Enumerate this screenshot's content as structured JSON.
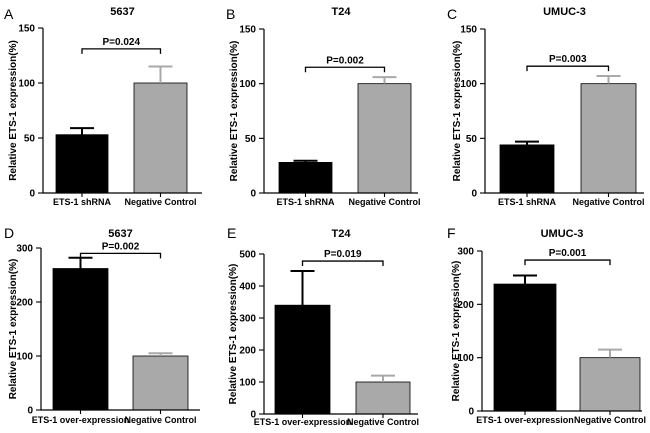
{
  "figure": {
    "label": "Relative ETS-1 expression bar charts (six panels)"
  },
  "colors": {
    "bar_dark": "#000000",
    "bar_light": "#a9a9a9",
    "axis": "#000000"
  },
  "chart_data": [
    {
      "panel": "A",
      "type": "bar",
      "title": "5637",
      "ylabel": "Relative ETS-1 expression(%)",
      "xlabel": "",
      "categories": [
        "ETS-1 shRNA",
        "Negative Control"
      ],
      "values": [
        53,
        100
      ],
      "errors": [
        6,
        15
      ],
      "ylim": [
        0,
        150
      ],
      "yticks": [
        0,
        50,
        100,
        150
      ],
      "significance": "P=0.024",
      "bracket_y": 131
    },
    {
      "panel": "B",
      "type": "bar",
      "title": "T24",
      "ylabel": "Relative ETS-1 expression(%)",
      "xlabel": "",
      "categories": [
        "ETS-1 shRNA",
        "Negative Control"
      ],
      "values": [
        28,
        100
      ],
      "errors": [
        1.5,
        6
      ],
      "ylim": [
        0,
        150
      ],
      "yticks": [
        0,
        50,
        100,
        150
      ],
      "significance": "P=0.002",
      "bracket_y": 115
    },
    {
      "panel": "C",
      "type": "bar",
      "title": "UMUC-3",
      "ylabel": "Relative ETS-1 expression(%)",
      "xlabel": "",
      "categories": [
        "ETS-1 shRNA",
        "Negative Control"
      ],
      "values": [
        44,
        100
      ],
      "errors": [
        3,
        7
      ],
      "ylim": [
        0,
        150
      ],
      "yticks": [
        0,
        50,
        100,
        150
      ],
      "significance": "P=0.003",
      "bracket_y": 116
    },
    {
      "panel": "D",
      "type": "bar",
      "title": "5637",
      "ylabel": "Relative ETS-1 expression(%)",
      "xlabel": "",
      "categories": [
        "ETS-1 over-expression",
        "Negative Control"
      ],
      "values": [
        262,
        100
      ],
      "errors": [
        20,
        5
      ],
      "ylim": [
        0,
        300
      ],
      "yticks": [
        0,
        100,
        200,
        300
      ],
      "significance": "P=0.002",
      "bracket_y": 290
    },
    {
      "panel": "E",
      "type": "bar",
      "title": "T24",
      "ylabel": "Relative ETS-1 expression(%)",
      "xlabel": "",
      "categories": [
        "ETS-1 over-expression",
        "Negative Control"
      ],
      "values": [
        340,
        100
      ],
      "errors": [
        107,
        20
      ],
      "ylim": [
        0,
        500
      ],
      "yticks": [
        0,
        100,
        200,
        300,
        400,
        500
      ],
      "significance": "P=0.019",
      "bracket_y": 478
    },
    {
      "panel": "F",
      "type": "bar",
      "title": "UMUC-3",
      "ylabel": "Relative ETS-1 expression(%)",
      "xlabel": "",
      "categories": [
        "ETS-1 over-expression",
        "Negative Control"
      ],
      "values": [
        238,
        100
      ],
      "errors": [
        16,
        15
      ],
      "ylim": [
        0,
        300
      ],
      "yticks": [
        0,
        100,
        200,
        300
      ],
      "significance": "P=0.001",
      "bracket_y": 283
    }
  ]
}
